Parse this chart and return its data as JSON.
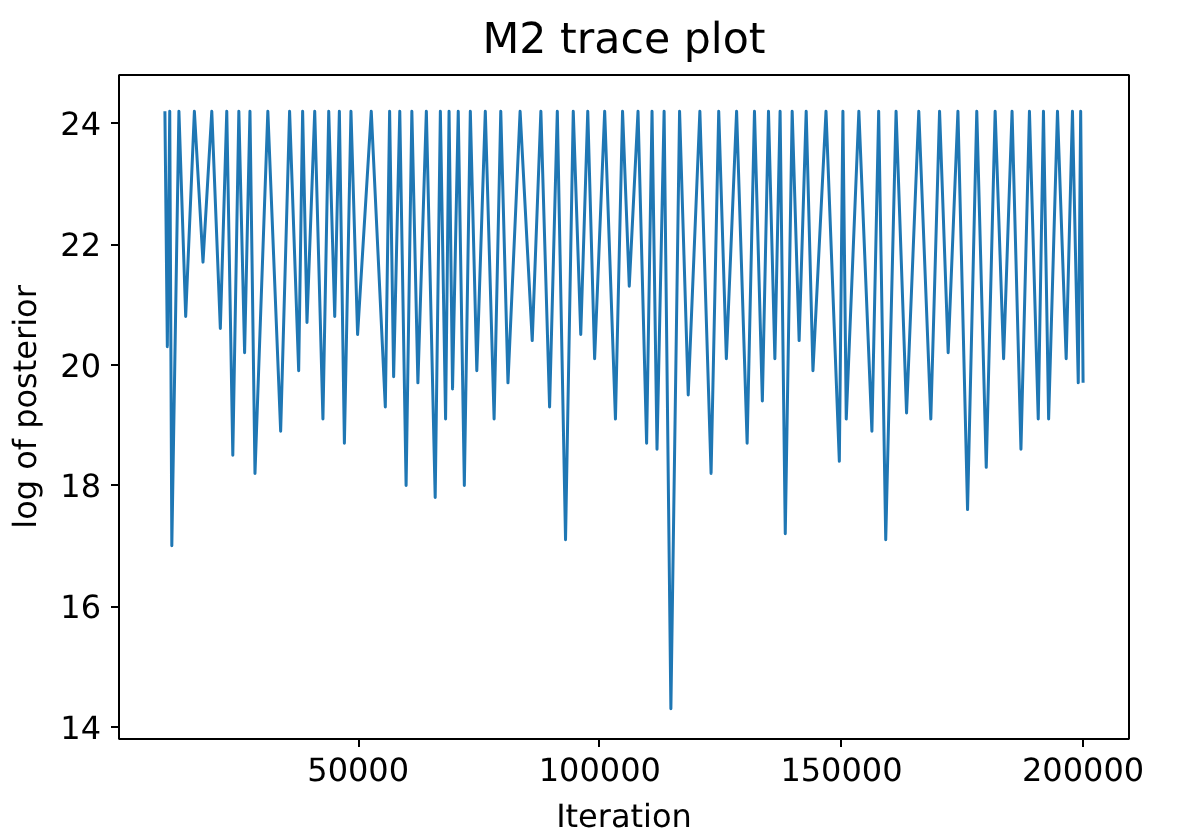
{
  "chart_data": {
    "type": "line",
    "title": "M2 trace plot",
    "xlabel": "Iteration",
    "ylabel": "log of posterior",
    "xlim": [
      500,
      209500
    ],
    "ylim": [
      13.8,
      24.8
    ],
    "xticks": [
      50000,
      100000,
      150000,
      200000
    ],
    "yticks": [
      14,
      16,
      18,
      20,
      22,
      24
    ],
    "grid": false,
    "series": [
      {
        "color": "#1f77b4",
        "x": [
          10000,
          10500,
          11000,
          11430,
          12900,
          14300,
          16100,
          17880,
          19700,
          21470,
          22800,
          24050,
          25300,
          26490,
          27600,
          28640,
          31300,
          33950,
          35800,
          37680,
          38500,
          39400,
          41000,
          42700,
          43900,
          45140,
          46100,
          47140,
          48500,
          49870,
          52700,
          55610,
          56500,
          57330,
          58600,
          59910,
          61100,
          62350,
          64100,
          65930,
          67000,
          68080,
          68800,
          69520,
          70700,
          71960,
          73200,
          74540,
          76300,
          78120,
          79500,
          80990,
          83500,
          86010,
          87800,
          89600,
          91200,
          92900,
          94500,
          96050,
          97500,
          98920,
          101000,
          103230,
          104700,
          106090,
          107900,
          109680,
          110800,
          111830,
          113300,
          114700,
          116500,
          118290,
          120700,
          123020,
          124600,
          126180,
          128300,
          130480,
          132000,
          133630,
          134900,
          136220,
          137300,
          138370,
          139800,
          141240,
          142700,
          144100,
          146800,
          149560,
          150300,
          150990,
          153600,
          156300,
          157700,
          159160,
          161300,
          163470,
          166000,
          168490,
          170300,
          172080,
          174100,
          176090,
          178000,
          179960,
          181800,
          183550,
          185300,
          187140,
          188900,
          190720,
          191800,
          192870,
          194700,
          196500,
          197800,
          199000,
          199500,
          200000
        ],
        "values": [
          24.2,
          20.3,
          24.2,
          17.0,
          24.2,
          20.8,
          24.2,
          21.7,
          24.2,
          20.6,
          24.2,
          18.5,
          24.2,
          20.2,
          24.2,
          18.2,
          24.2,
          18.9,
          24.2,
          19.9,
          24.2,
          20.7,
          24.2,
          19.1,
          24.2,
          20.8,
          24.2,
          18.7,
          24.2,
          20.5,
          24.2,
          19.3,
          24.2,
          19.8,
          24.2,
          18.0,
          24.2,
          19.7,
          24.2,
          17.8,
          24.2,
          19.1,
          24.2,
          19.6,
          24.2,
          18.0,
          24.2,
          19.9,
          24.2,
          19.1,
          24.2,
          19.7,
          24.2,
          20.4,
          24.2,
          19.3,
          24.2,
          17.1,
          24.2,
          20.5,
          24.2,
          20.1,
          24.2,
          19.1,
          24.2,
          21.3,
          24.2,
          18.7,
          24.2,
          18.6,
          24.2,
          14.3,
          24.2,
          19.5,
          24.2,
          18.2,
          24.2,
          20.1,
          24.2,
          18.7,
          24.2,
          19.4,
          24.2,
          20.1,
          24.2,
          17.2,
          24.2,
          20.4,
          24.2,
          19.9,
          24.2,
          18.4,
          24.2,
          19.1,
          24.2,
          18.9,
          24.2,
          17.1,
          24.2,
          19.2,
          24.2,
          19.1,
          24.2,
          20.2,
          24.2,
          17.6,
          24.2,
          18.3,
          24.2,
          20.1,
          24.2,
          18.6,
          24.2,
          19.1,
          24.2,
          19.1,
          24.2,
          20.1,
          24.2,
          19.7,
          24.2,
          19.7
        ]
      }
    ]
  }
}
